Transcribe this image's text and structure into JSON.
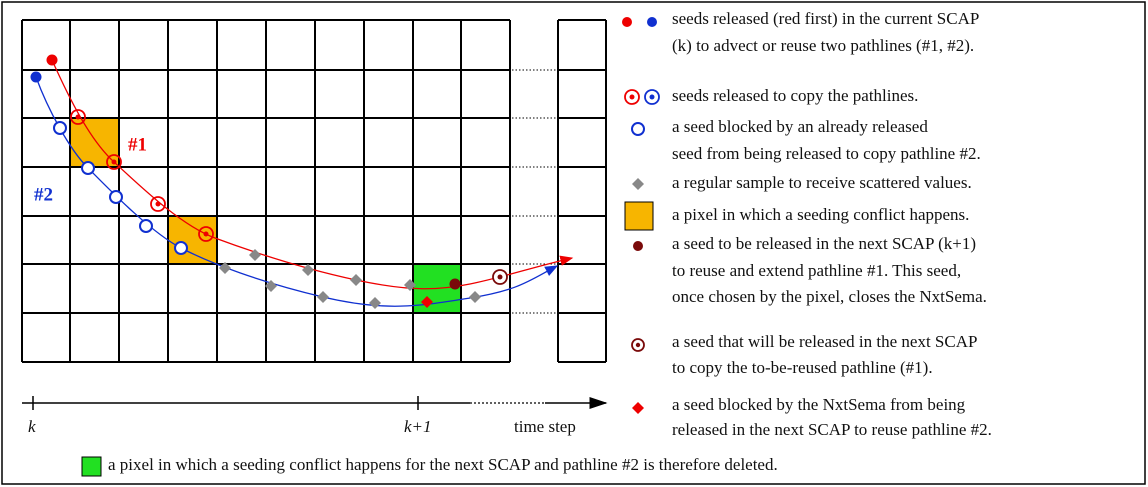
{
  "labels": {
    "path1": "#1",
    "path2": "#2",
    "k": "k",
    "k1": "k+1",
    "time": "time step"
  },
  "legend": [
    [
      "seeds released (red first) in the current SCAP",
      "(k) to advect or reuse two pathlines (#1, #2)."
    ],
    [
      "seeds released to copy the pathlines."
    ],
    [
      "a seed blocked by an already released",
      "seed from being released to copy pathline #2."
    ],
    [
      "a regular sample to receive scattered values."
    ],
    [
      "a pixel in which a seeding conflict happens."
    ],
    [
      "a seed to be released in the next SCAP (k+1)",
      "to reuse and extend pathline #1. This seed,",
      "once chosen by the pixel, closes the NxtSema."
    ],
    [
      "a seed that will be released in the next SCAP",
      "to copy the to-be-reused pathline (#1)."
    ],
    [
      "a seed blocked by the NxtSema from being",
      "released in the next SCAP to reuse pathline #2."
    ]
  ],
  "bottom": "a pixel in which a seeding conflict happens for the next SCAP and pathline #2 is therefore deleted."
}
